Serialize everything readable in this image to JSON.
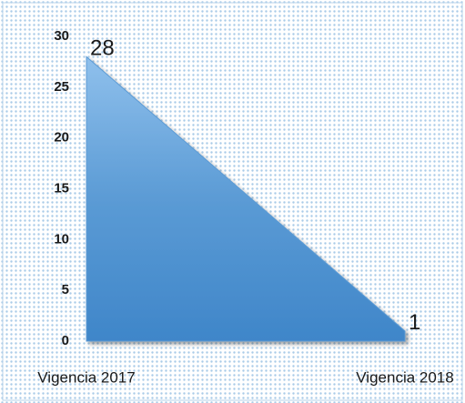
{
  "chart_data": {
    "type": "area",
    "categories": [
      "Vigencia 2017",
      "Vigencia 2018"
    ],
    "series": [
      {
        "values": [
          28,
          1
        ],
        "color": "#5b9bd5"
      }
    ],
    "value_labels": [
      "28",
      "1"
    ],
    "ylim": [
      0,
      30
    ],
    "yticks": [
      0,
      5,
      10,
      15,
      20,
      25,
      30
    ],
    "grid": false
  }
}
